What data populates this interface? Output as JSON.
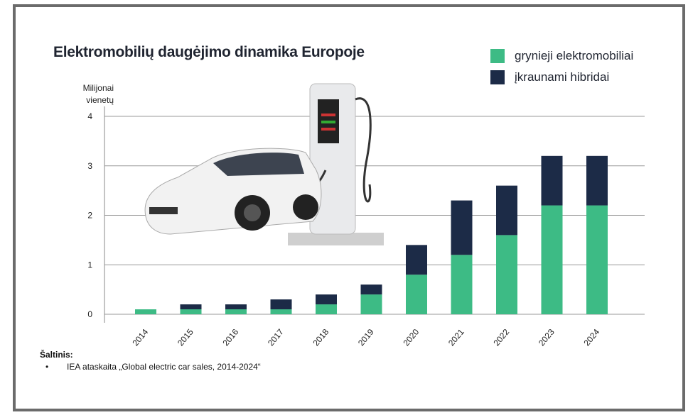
{
  "title": "Elektromobilių daugėjimo dinamika Europoje",
  "source": {
    "heading": "Šaltinis:",
    "bullet": "•",
    "items": [
      "IEA ataskaita „Global electric car sales, 2014-2024“"
    ]
  },
  "chart_data": {
    "type": "bar",
    "stacked": true,
    "title": "Elektromobilių daugėjimo dinamika Europoje",
    "ylabel": "Milijonai vienetų",
    "ylabel_lines": [
      "Milijonai",
      "vienetų"
    ],
    "xlabel": "",
    "ylim": [
      0,
      4
    ],
    "yticks": [
      0,
      1,
      2,
      3,
      4
    ],
    "grid": true,
    "legend_position": "top-right",
    "categories": [
      "2014",
      "2015",
      "2016",
      "2017",
      "2018",
      "2019",
      "2020",
      "2021",
      "2022",
      "2023",
      "2024"
    ],
    "series": [
      {
        "name": "grynieji elektromobiliai",
        "color": "#3dbb85",
        "values": [
          0.1,
          0.1,
          0.1,
          0.1,
          0.2,
          0.4,
          0.8,
          1.2,
          1.6,
          2.2,
          2.2
        ]
      },
      {
        "name": "įkraunami hibridai",
        "color": "#1c2b47",
        "values": [
          0,
          0.1,
          0.1,
          0.2,
          0.2,
          0.2,
          0.6,
          1.1,
          1.0,
          1.0,
          1.0
        ]
      }
    ]
  }
}
